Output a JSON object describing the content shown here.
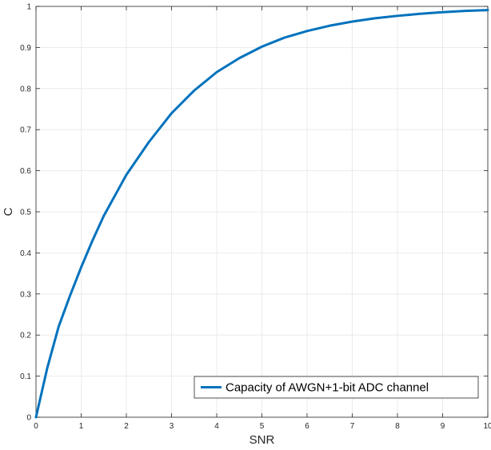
{
  "chart_data": {
    "type": "line",
    "title": "",
    "xlabel": "SNR",
    "ylabel": "C",
    "xlim": [
      0,
      10
    ],
    "ylim": [
      0,
      1
    ],
    "xticks": [
      0,
      1,
      2,
      3,
      4,
      5,
      6,
      7,
      8,
      9,
      10
    ],
    "yticks": [
      0,
      0.1,
      0.2,
      0.3,
      0.4,
      0.5,
      0.6,
      0.7,
      0.8,
      0.9,
      1
    ],
    "xtick_labels": [
      "0",
      "1",
      "2",
      "3",
      "4",
      "5",
      "6",
      "7",
      "8",
      "9",
      "10"
    ],
    "ytick_labels": [
      "0",
      "0.1",
      "0.2",
      "0.3",
      "0.4",
      "0.5",
      "0.6",
      "0.7",
      "0.8",
      "0.9",
      "1"
    ],
    "grid": true,
    "legend_position": "bottom-right",
    "series": [
      {
        "name": "Capacity of AWGN+1-bit ADC channel",
        "color": "#0072BD",
        "x": [
          0,
          0.25,
          0.5,
          0.75,
          1,
          1.25,
          1.5,
          1.75,
          2,
          2.5,
          3,
          3.5,
          4,
          4.5,
          5,
          5.5,
          6,
          6.5,
          7,
          7.5,
          8,
          8.5,
          9,
          9.5,
          10
        ],
        "y": [
          0,
          0.12,
          0.22,
          0.295,
          0.365,
          0.43,
          0.49,
          0.54,
          0.59,
          0.67,
          0.74,
          0.795,
          0.84,
          0.874,
          0.902,
          0.924,
          0.94,
          0.953,
          0.963,
          0.971,
          0.977,
          0.982,
          0.986,
          0.989,
          0.991
        ]
      }
    ]
  }
}
